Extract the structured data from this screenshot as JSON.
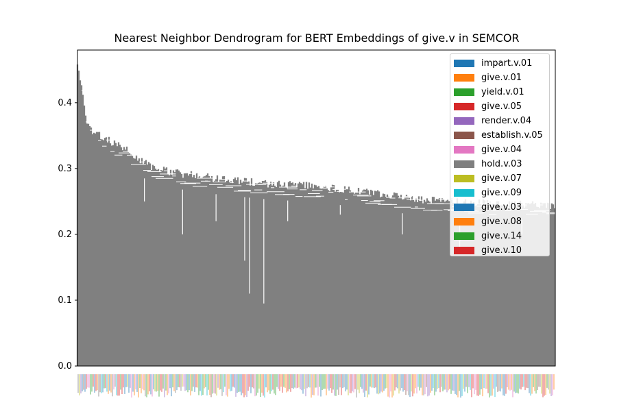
{
  "chart_data": {
    "type": "dendrogram",
    "title": "Nearest Neighbor Dendrogram for BERT Embeddings of give.v in SEMCOR",
    "xlabel": "",
    "ylabel": "",
    "ylim": [
      0,
      0.48
    ],
    "yticks": [
      0.0,
      0.1,
      0.2,
      0.3,
      0.4
    ],
    "ytick_labels": [
      "0.0",
      "0.1",
      "0.2",
      "0.3",
      "0.4"
    ],
    "max_merge_height": 0.465,
    "link_color": "#808080",
    "legend_position": "upper right",
    "legend": [
      {
        "label": "impart.v.01",
        "color": "#1f77b4"
      },
      {
        "label": "give.v.01",
        "color": "#ff7f0e"
      },
      {
        "label": "yield.v.01",
        "color": "#2ca02c"
      },
      {
        "label": "give.v.05",
        "color": "#d62728"
      },
      {
        "label": "render.v.04",
        "color": "#9467bd"
      },
      {
        "label": "establish.v.05",
        "color": "#8c564b"
      },
      {
        "label": "give.v.04",
        "color": "#e377c2"
      },
      {
        "label": "hold.v.03",
        "color": "#7f7f7f"
      },
      {
        "label": "give.v.07",
        "color": "#bcbd22"
      },
      {
        "label": "give.v.09",
        "color": "#17becf"
      },
      {
        "label": "give.v.03",
        "color": "#1f77b4"
      },
      {
        "label": "give.v.08",
        "color": "#ff7f0e"
      },
      {
        "label": "give.v.14",
        "color": "#2ca02c"
      },
      {
        "label": "give.v.10",
        "color": "#d62728"
      }
    ],
    "merge_envelope": [
      [
        0.0,
        0.465
      ],
      [
        0.01,
        0.43
      ],
      [
        0.02,
        0.37
      ],
      [
        0.05,
        0.355
      ],
      [
        0.1,
        0.335
      ],
      [
        0.15,
        0.31
      ],
      [
        0.2,
        0.3
      ],
      [
        0.3,
        0.29
      ],
      [
        0.4,
        0.283
      ],
      [
        0.5,
        0.279
      ],
      [
        0.6,
        0.27
      ],
      [
        0.7,
        0.26
      ],
      [
        0.8,
        0.255
      ],
      [
        0.9,
        0.252
      ],
      [
        1.0,
        0.25
      ]
    ]
  }
}
